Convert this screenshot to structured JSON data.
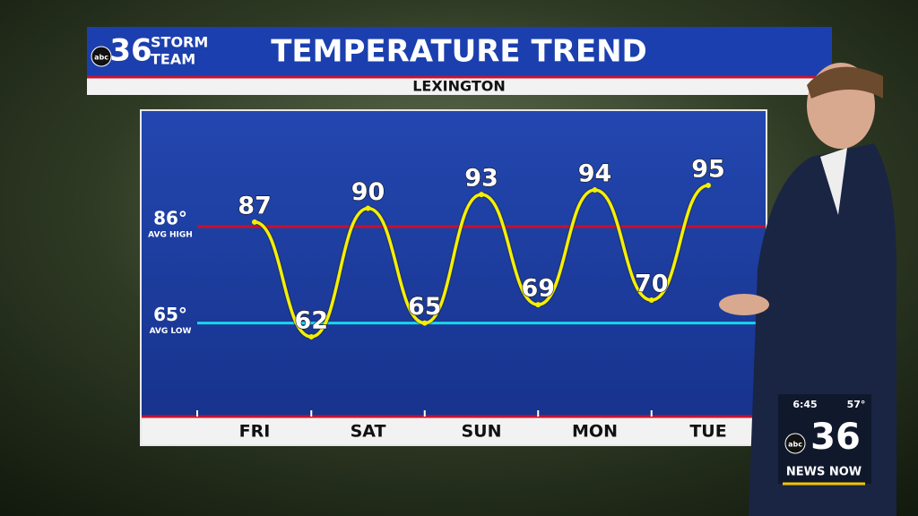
{
  "chart_data": {
    "type": "line",
    "title": "TEMPERATURE TREND",
    "subtitle": "LEXINGTON",
    "categories": [
      "FRI",
      null,
      "SAT",
      null,
      "SUN",
      null,
      "MON",
      null,
      "TUE"
    ],
    "values": [
      87,
      62,
      90,
      65,
      93,
      69,
      94,
      70,
      95
    ],
    "color": "#f5f000",
    "ylim": [
      45,
      111
    ],
    "reference_lines": [
      {
        "value": 86,
        "label": "86°",
        "name": "AVG HIGH",
        "color": "#c8102e"
      },
      {
        "value": 65,
        "label": "65°",
        "name": "AVG LOW",
        "color": "#19d6e8"
      }
    ]
  },
  "logo": {
    "network": "abc",
    "channel": "36",
    "line1": "STORM",
    "line2": "TEAM"
  },
  "bug": {
    "time": "6:45",
    "temperature": "57°",
    "network": "abc",
    "channel": "36",
    "brand": "NEWS NOW"
  }
}
